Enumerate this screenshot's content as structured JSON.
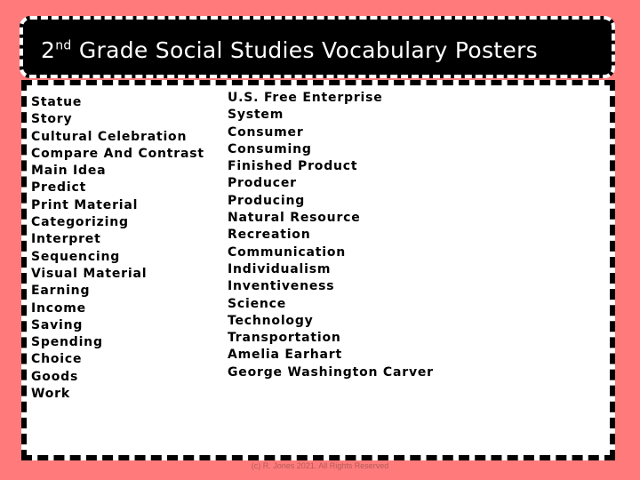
{
  "title": {
    "prefix": "2",
    "superscript": "nd",
    "rest": " Grade Social Studies Vocabulary Posters"
  },
  "left_words": [
    "Statue",
    "Story",
    "Cultural Celebration",
    "Compare And Contrast",
    "Main Idea",
    "Predict",
    "Print Material",
    "Categorizing",
    "Interpret",
    "Sequencing",
    "Visual Material",
    "Earning",
    "Income",
    "Saving",
    "Spending",
    "Choice",
    "Goods",
    "Work"
  ],
  "right_words": [
    "U.S. Free Enterprise",
    "System",
    "Consumer",
    "Consuming",
    "Finished Product",
    "Producer",
    "Producing",
    "Natural Resource",
    "Recreation",
    "Communication",
    "Individualism",
    "Inventiveness",
    "Science",
    "Technology",
    "Transportation",
    "Amelia Earhart",
    "George Washington Carver"
  ],
  "footer": "(c) R. Jones 2021. All Rights Reserved",
  "colors": {
    "background": "#ff7b7b",
    "title_bg": "#000000",
    "title_text": "#ffffff"
  }
}
